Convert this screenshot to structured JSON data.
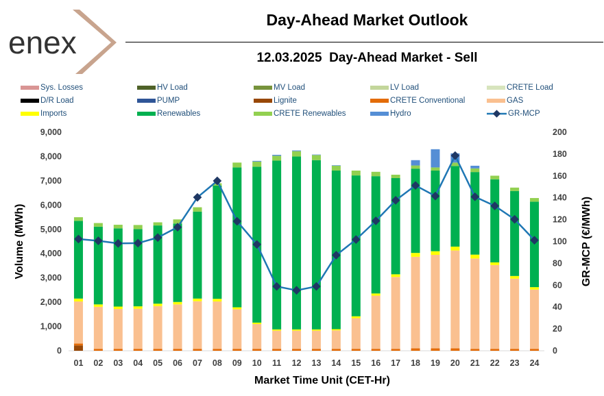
{
  "header": {
    "logo_text": "enex",
    "title": "Day-Ahead Market Outlook",
    "subtitle": "12.03.2025  Day-Ahead Market - Sell"
  },
  "chart_data": {
    "type": "bar",
    "stacked": true,
    "xlabel": "Market Time Unit (CET-Hr)",
    "ylabel": "Volume (MWh)",
    "y2label": "GR-MCP (€/MWh)",
    "ylim": [
      0,
      9000
    ],
    "y2lim": [
      0,
      200
    ],
    "yticks": [
      "0",
      "1,000",
      "2,000",
      "3,000",
      "4,000",
      "5,000",
      "6,000",
      "7,000",
      "8,000",
      "9,000"
    ],
    "y2ticks": [
      "0",
      "20",
      "40",
      "60",
      "80",
      "100",
      "120",
      "140",
      "160",
      "180",
      "200"
    ],
    "categories": [
      "01",
      "02",
      "03",
      "04",
      "05",
      "06",
      "07",
      "08",
      "09",
      "10",
      "11",
      "12",
      "13",
      "14",
      "15",
      "16",
      "17",
      "18",
      "19",
      "20",
      "21",
      "22",
      "23",
      "24"
    ],
    "series": [
      {
        "name": "Sys. Losses",
        "color": "#d99594",
        "values": [
          0,
          0,
          0,
          0,
          0,
          0,
          0,
          0,
          0,
          0,
          0,
          0,
          0,
          0,
          0,
          0,
          0,
          0,
          0,
          0,
          0,
          0,
          0,
          0
        ]
      },
      {
        "name": "HV Load",
        "color": "#4f6228",
        "values": [
          0,
          0,
          0,
          0,
          0,
          0,
          0,
          0,
          0,
          0,
          0,
          0,
          0,
          0,
          0,
          0,
          0,
          0,
          0,
          0,
          0,
          0,
          0,
          0
        ]
      },
      {
        "name": "MV Load",
        "color": "#77933c",
        "values": [
          0,
          0,
          0,
          0,
          0,
          0,
          0,
          0,
          0,
          0,
          0,
          0,
          0,
          0,
          0,
          0,
          0,
          0,
          0,
          0,
          0,
          0,
          0,
          0
        ]
      },
      {
        "name": "LV Load",
        "color": "#c3d69b",
        "values": [
          0,
          0,
          0,
          0,
          0,
          0,
          0,
          0,
          0,
          0,
          0,
          0,
          0,
          0,
          0,
          0,
          0,
          0,
          0,
          0,
          0,
          0,
          0,
          0
        ]
      },
      {
        "name": "CRETE Load",
        "color": "#d7e4bd",
        "values": [
          0,
          0,
          0,
          0,
          0,
          0,
          0,
          0,
          0,
          0,
          0,
          0,
          0,
          0,
          0,
          0,
          0,
          0,
          0,
          0,
          0,
          0,
          0,
          0
        ]
      },
      {
        "name": "D/R Load",
        "color": "#000000",
        "values": [
          0,
          0,
          0,
          0,
          0,
          0,
          0,
          0,
          0,
          0,
          0,
          0,
          0,
          0,
          0,
          0,
          0,
          0,
          0,
          0,
          0,
          0,
          0,
          0
        ]
      },
      {
        "name": "PUMP",
        "color": "#2f5597",
        "values": [
          0,
          0,
          0,
          0,
          0,
          0,
          0,
          0,
          0,
          0,
          0,
          0,
          0,
          0,
          0,
          0,
          0,
          0,
          0,
          0,
          0,
          0,
          0,
          0
        ]
      },
      {
        "name": "Lignite",
        "color": "#984807",
        "values": [
          220,
          0,
          0,
          0,
          0,
          0,
          0,
          0,
          0,
          0,
          0,
          0,
          0,
          0,
          0,
          0,
          0,
          0,
          0,
          0,
          0,
          0,
          0,
          0
        ]
      },
      {
        "name": "CRETE Conventional",
        "color": "#e36c09",
        "values": [
          80,
          80,
          80,
          80,
          80,
          80,
          80,
          80,
          80,
          80,
          80,
          80,
          80,
          80,
          80,
          80,
          80,
          100,
          100,
          100,
          80,
          80,
          80,
          80
        ]
      },
      {
        "name": "GAS",
        "color": "#fac090",
        "values": [
          1730,
          1730,
          1640,
          1650,
          1760,
          1830,
          1960,
          1950,
          1630,
          1020,
          750,
          750,
          750,
          760,
          1260,
          2190,
          2960,
          3770,
          3850,
          4030,
          3720,
          3450,
          2890,
          2440
        ]
      },
      {
        "name": "Imports",
        "color": "#ffff00",
        "values": [
          120,
          100,
          100,
          100,
          100,
          100,
          110,
          110,
          80,
          60,
          50,
          50,
          50,
          50,
          80,
          90,
          110,
          160,
          150,
          160,
          160,
          110,
          110,
          100
        ]
      },
      {
        "name": "Renewables",
        "color": "#00b050",
        "values": [
          3200,
          3200,
          3220,
          3180,
          3220,
          3230,
          3580,
          4660,
          5760,
          6420,
          6950,
          7120,
          6970,
          6530,
          5800,
          4830,
          3960,
          3470,
          3320,
          3320,
          3400,
          3420,
          3500,
          3520
        ]
      },
      {
        "name": "CRETE Renewables",
        "color": "#92d050",
        "values": [
          150,
          150,
          150,
          170,
          130,
          170,
          180,
          100,
          200,
          210,
          200,
          220,
          210,
          200,
          200,
          180,
          140,
          130,
          130,
          140,
          150,
          150,
          140,
          150
        ]
      },
      {
        "name": "Hydro",
        "color": "#558ed5",
        "values": [
          0,
          0,
          0,
          0,
          0,
          0,
          0,
          0,
          0,
          30,
          40,
          30,
          20,
          20,
          0,
          0,
          0,
          220,
          750,
          380,
          110,
          0,
          0,
          0
        ]
      }
    ],
    "line": {
      "name": "GR-MCP",
      "color": "#1f77b4",
      "values": [
        102.3,
        100.6,
        98.3,
        98.5,
        103.6,
        113.1,
        140.4,
        155.5,
        118.5,
        97.3,
        58.9,
        55.3,
        58.9,
        87.5,
        101.8,
        118.9,
        137.7,
        151.3,
        141.6,
        178.6,
        140.9,
        132.6,
        120.3,
        101.2
      ]
    }
  },
  "legend_order": [
    "Sys. Losses",
    "HV Load",
    "MV Load",
    "LV Load",
    "CRETE Load",
    "D/R Load",
    "PUMP",
    "Lignite",
    "CRETE Conventional",
    "GAS",
    "Imports",
    "Renewables",
    "CRETE Renewables",
    "Hydro",
    "GR-MCP"
  ]
}
